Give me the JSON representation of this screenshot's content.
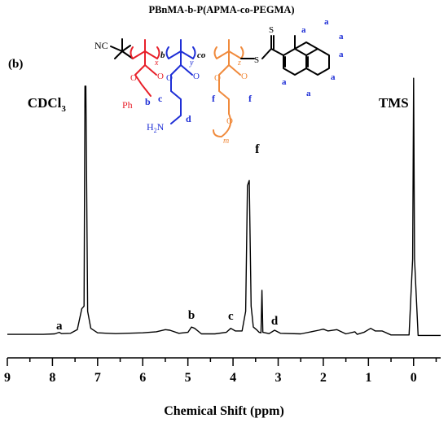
{
  "chart_data": {
    "type": "line",
    "title": "PBnMA-b-P(APMA-co-PEGMA)",
    "panel_label": "(b)",
    "xlabel": "Chemical Shift (ppm)",
    "ylabel": "",
    "x_reversed": true,
    "xlim": [
      9,
      -0.6
    ],
    "ylim": [
      0,
      1
    ],
    "grid": false,
    "x_ticks": [
      9,
      8,
      7,
      6,
      5,
      4,
      3,
      2,
      1,
      0
    ],
    "x_tick_labels": [
      "9",
      "8",
      "7",
      "6",
      "5",
      "4",
      "3",
      "2",
      "1",
      "0"
    ],
    "series": [
      {
        "points": [
          [
            9.0,
            0.012
          ],
          [
            8.2,
            0.012
          ],
          [
            7.95,
            0.014
          ],
          [
            7.85,
            0.02
          ],
          [
            7.8,
            0.015
          ],
          [
            7.6,
            0.016
          ],
          [
            7.45,
            0.03
          ],
          [
            7.35,
            0.11
          ],
          [
            7.3,
            0.12
          ],
          [
            7.28,
            0.96
          ],
          [
            7.26,
            0.96
          ],
          [
            7.22,
            0.1
          ],
          [
            7.15,
            0.035
          ],
          [
            7.0,
            0.018
          ],
          [
            6.6,
            0.015
          ],
          [
            6.0,
            0.018
          ],
          [
            5.7,
            0.022
          ],
          [
            5.5,
            0.03
          ],
          [
            5.4,
            0.028
          ],
          [
            5.2,
            0.016
          ],
          [
            5.0,
            0.02
          ],
          [
            4.92,
            0.04
          ],
          [
            4.85,
            0.035
          ],
          [
            4.7,
            0.014
          ],
          [
            4.4,
            0.014
          ],
          [
            4.15,
            0.02
          ],
          [
            4.05,
            0.035
          ],
          [
            3.95,
            0.025
          ],
          [
            3.8,
            0.025
          ],
          [
            3.72,
            0.1
          ],
          [
            3.68,
            0.58
          ],
          [
            3.64,
            0.6
          ],
          [
            3.6,
            0.12
          ],
          [
            3.55,
            0.04
          ],
          [
            3.48,
            0.03
          ],
          [
            3.42,
            0.02
          ],
          [
            3.38,
            0.018
          ],
          [
            3.36,
            0.18
          ],
          [
            3.34,
            0.02
          ],
          [
            3.2,
            0.015
          ],
          [
            3.08,
            0.028
          ],
          [
            2.95,
            0.016
          ],
          [
            2.5,
            0.014
          ],
          [
            2.1,
            0.028
          ],
          [
            2.0,
            0.032
          ],
          [
            1.9,
            0.025
          ],
          [
            1.7,
            0.03
          ],
          [
            1.5,
            0.014
          ],
          [
            1.3,
            0.022
          ],
          [
            1.25,
            0.012
          ],
          [
            1.1,
            0.02
          ],
          [
            1.0,
            0.03
          ],
          [
            0.95,
            0.035
          ],
          [
            0.85,
            0.025
          ],
          [
            0.7,
            0.025
          ],
          [
            0.5,
            0.01
          ],
          [
            0.1,
            0.01
          ],
          [
            0.02,
            0.3
          ],
          [
            0.0,
            0.99
          ],
          [
            -0.02,
            0.3
          ],
          [
            -0.1,
            0.008
          ],
          [
            -0.6,
            0.008
          ]
        ]
      }
    ],
    "annotations": [
      {
        "text": "CDCl3",
        "base": "CDCl",
        "sub": "3",
        "x": 7.27
      },
      {
        "text": "TMS",
        "x": 0.0
      },
      {
        "text": "f",
        "x": 3.62
      },
      {
        "text": "a",
        "x": 7.85
      },
      {
        "text": "b",
        "x": 4.92
      },
      {
        "text": "c",
        "x": 4.05
      },
      {
        "text": "d",
        "x": 3.08
      }
    ]
  },
  "structure": {
    "nc": "NC",
    "block_b": "b",
    "block_co": "co",
    "sub_x": "x",
    "sub_y": "y",
    "sub_z": "z",
    "ph": "Ph",
    "amine": "H",
    "amine_sub": "2",
    "amine_n": "N",
    "m": "m",
    "sulfur_top": "S",
    "sulfur_chain": "S",
    "o": "O",
    "labels": {
      "b": "b",
      "c": "c",
      "d": "d",
      "f": "f",
      "a": "a"
    },
    "colors": {
      "red": "#e8202a",
      "blue": "#1f2fd6",
      "orange": "#f08a3c",
      "black": "#000000"
    }
  }
}
